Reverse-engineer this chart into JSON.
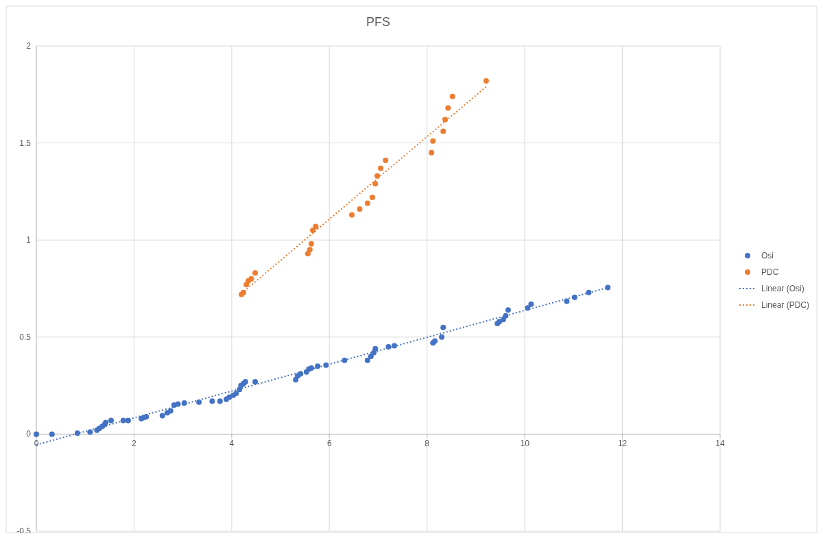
{
  "chart_data": {
    "type": "scatter",
    "title": "PFS",
    "xlim": [
      0,
      14
    ],
    "xticks": [
      0,
      2,
      4,
      6,
      8,
      10,
      12,
      14
    ],
    "ylim": [
      -0.5,
      2
    ],
    "yticks": [
      -0.5,
      0,
      0.5,
      1,
      1.5,
      2
    ],
    "grid": true,
    "legend": "right",
    "marker": "circle",
    "series": [
      {
        "name": "Osi",
        "color": "#4472c4",
        "x": [
          0,
          0.32,
          0.84,
          1.1,
          1.24,
          1.29,
          1.35,
          1.4,
          1.42,
          1.53,
          1.78,
          1.88,
          2.15,
          2.2,
          2.25,
          2.58,
          2.68,
          2.75,
          2.82,
          2.9,
          3.03,
          3.33,
          3.6,
          3.76,
          3.89,
          3.95,
          4.03,
          4.09,
          4.16,
          4.19,
          4.24,
          4.28,
          4.48,
          5.31,
          5.35,
          5.41,
          5.53,
          5.58,
          5.63,
          5.76,
          5.93,
          6.31,
          6.78,
          6.85,
          6.91,
          6.94,
          7.21,
          7.33,
          8.12,
          8.16,
          8.3,
          8.33,
          9.44,
          9.48,
          9.56,
          9.61,
          9.66,
          10.06,
          10.13,
          10.86,
          11.02,
          11.31,
          11.7
        ],
        "values": [
          0,
          0,
          0.005,
          0.01,
          0.02,
          0.03,
          0.04,
          0.05,
          0.06,
          0.07,
          0.07,
          0.07,
          0.08,
          0.085,
          0.09,
          0.095,
          0.11,
          0.12,
          0.15,
          0.155,
          0.16,
          0.165,
          0.17,
          0.17,
          0.18,
          0.19,
          0.2,
          0.21,
          0.23,
          0.25,
          0.26,
          0.27,
          0.27,
          0.28,
          0.3,
          0.31,
          0.32,
          0.335,
          0.34,
          0.35,
          0.355,
          0.38,
          0.38,
          0.4,
          0.42,
          0.44,
          0.45,
          0.455,
          0.47,
          0.48,
          0.5,
          0.55,
          0.57,
          0.58,
          0.59,
          0.61,
          0.64,
          0.65,
          0.67,
          0.685,
          0.705,
          0.73,
          0.755
        ]
      },
      {
        "name": "PDC",
        "color": "#ed7d31",
        "x": [
          4.2,
          4.24,
          4.3,
          4.34,
          4.4,
          4.48,
          5.56,
          5.6,
          5.63,
          5.66,
          5.72,
          6.46,
          6.62,
          6.78,
          6.88,
          6.94,
          6.98,
          7.05,
          7.15,
          8.09,
          8.12,
          8.33,
          8.37,
          8.43,
          8.52,
          9.21
        ],
        "values": [
          0.72,
          0.73,
          0.77,
          0.79,
          0.8,
          0.83,
          0.93,
          0.95,
          0.98,
          1.05,
          1.07,
          1.13,
          1.16,
          1.19,
          1.22,
          1.29,
          1.33,
          1.37,
          1.41,
          1.45,
          1.51,
          1.56,
          1.62,
          1.68,
          1.74,
          1.82
        ]
      },
      {
        "name": "Linear (Osi)",
        "type": "line",
        "marker": "none",
        "line_style": "dotted",
        "color": "#4472c4",
        "x": [
          0,
          11.7
        ],
        "values": [
          -0.055,
          0.755
        ]
      },
      {
        "name": "Linear (PDC)",
        "type": "line",
        "marker": "none",
        "line_style": "dotted",
        "color": "#ed7d31",
        "x": [
          4.2,
          9.21
        ],
        "values": [
          0.725,
          1.79
        ]
      }
    ]
  }
}
